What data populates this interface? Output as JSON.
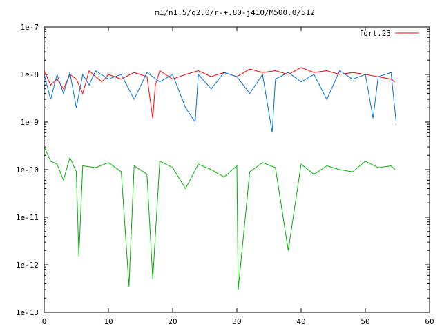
{
  "chart_data": {
    "type": "line",
    "title": "m1/n1.5/q2.0/r-+.80-j410/M500.0/512",
    "xlabel": "",
    "ylabel": "",
    "xlim": [
      0,
      60
    ],
    "ylim": [
      1e-13,
      1e-07
    ],
    "y_scale": "log",
    "x_ticks": [
      0,
      10,
      20,
      30,
      40,
      50,
      60
    ],
    "x_tick_labels": [
      "0",
      "10",
      "20",
      "30",
      "40",
      "50",
      "60"
    ],
    "y_ticks": [
      1e-13,
      1e-12,
      1e-11,
      1e-10,
      1e-09,
      1e-08,
      1e-07
    ],
    "y_tick_labels": [
      "1e-13",
      "1e-12",
      "1e-11",
      "1e-10",
      "1e-9",
      "1e-8",
      "1e-7"
    ],
    "grid": false,
    "legend_position": "top-right",
    "legend": [
      {
        "label": "fort.23",
        "color": "#ff0000"
      }
    ],
    "series": [
      {
        "color": "#ff0000",
        "x": [
          0,
          1,
          2,
          3,
          4,
          5,
          6,
          7,
          8,
          9,
          10,
          12,
          14,
          16,
          16.9,
          17.3,
          18,
          20,
          22,
          24,
          26,
          28,
          30,
          32,
          34,
          36,
          38,
          40,
          42,
          44,
          46,
          48,
          50,
          52,
          54,
          54.6
        ],
        "y": [
          1.2e-08,
          6e-09,
          8e-09,
          5e-09,
          1e-08,
          8e-09,
          4e-09,
          1.2e-08,
          9e-09,
          7e-09,
          1e-08,
          8e-09,
          1.1e-08,
          9e-09,
          1.2e-09,
          6e-09,
          1.2e-08,
          8e-09,
          1e-08,
          1.2e-08,
          9e-09,
          1.1e-08,
          9e-09,
          1.3e-08,
          1.1e-08,
          1.2e-08,
          1e-08,
          1.4e-08,
          1.1e-08,
          1.2e-08,
          1e-08,
          1.1e-08,
          1e-08,
          9e-09,
          8e-09,
          7e-09
        ]
      },
      {
        "color": "#0070e0",
        "x": [
          0,
          1,
          2,
          3,
          4,
          5,
          6,
          7,
          8,
          10,
          12,
          14,
          16,
          18,
          20,
          22,
          23.5,
          24,
          26,
          28,
          30,
          32,
          34,
          35.5,
          36,
          38,
          40,
          42,
          44,
          46,
          48,
          50,
          51.2,
          52,
          54,
          54.8
        ],
        "y": [
          1e-08,
          3e-09,
          1e-08,
          4e-09,
          1.1e-08,
          2e-09,
          1e-08,
          6e-09,
          1.2e-08,
          8e-09,
          1e-08,
          3e-09,
          1.1e-08,
          7e-09,
          1e-08,
          2e-09,
          1e-09,
          1e-08,
          5e-09,
          1.1e-08,
          9e-09,
          4e-09,
          1e-08,
          6e-10,
          8e-09,
          1.1e-08,
          7e-09,
          1e-08,
          3e-09,
          1.2e-08,
          8e-09,
          1e-08,
          1.2e-09,
          9e-09,
          1.1e-08,
          1e-09
        ]
      },
      {
        "color": "#00b000",
        "x": [
          0,
          1,
          2,
          3,
          4,
          5,
          5.4,
          6,
          8,
          10,
          12,
          13.2,
          14,
          16,
          16.9,
          18,
          20,
          22,
          24,
          26,
          28,
          30,
          30.2,
          32,
          34,
          36,
          38,
          40,
          42,
          44,
          46,
          48,
          50,
          52,
          54,
          54.6
        ],
        "y": [
          3e-10,
          1.5e-10,
          1.3e-10,
          6e-11,
          1.8e-10,
          9e-11,
          1.5e-12,
          1.2e-10,
          1.1e-10,
          1.4e-10,
          9e-11,
          3.5e-13,
          1.2e-10,
          8e-11,
          5e-13,
          1.5e-10,
          1.1e-10,
          4e-11,
          1.3e-10,
          1e-10,
          7e-11,
          1.2e-10,
          3e-13,
          9e-11,
          1.4e-10,
          1.1e-10,
          2e-12,
          1.3e-10,
          8e-11,
          1.2e-10,
          1e-10,
          9e-11,
          1.5e-10,
          1.1e-10,
          1.2e-10,
          1e-10
        ]
      }
    ]
  }
}
